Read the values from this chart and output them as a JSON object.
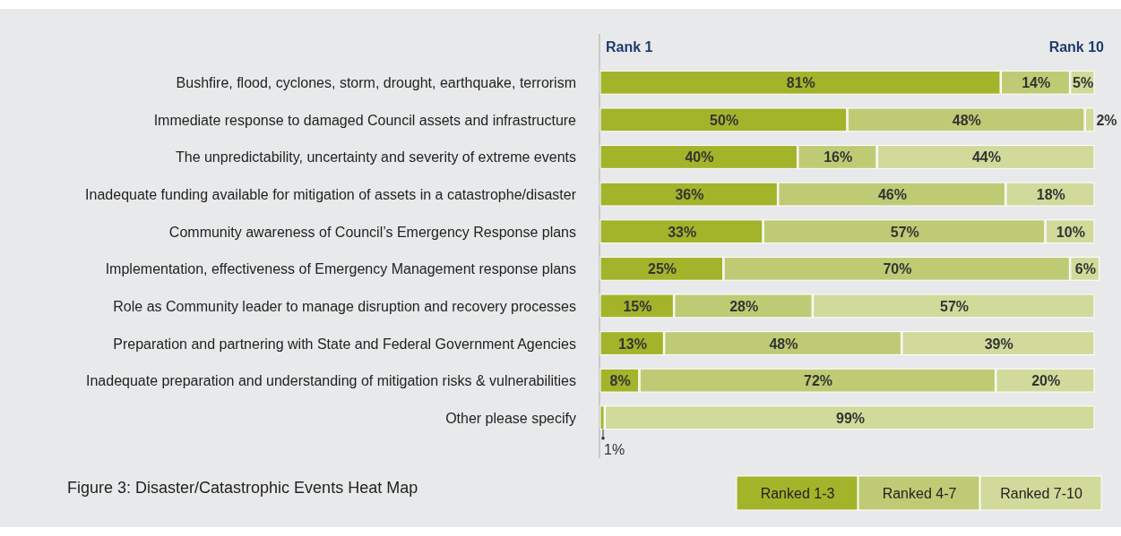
{
  "chart_data": {
    "type": "bar",
    "orientation": "horizontal",
    "stacked": true,
    "title": "Figure 3:  Disaster/Catastrophic Events Heat Map",
    "categories": [
      "Bushfire, flood, cyclones, storm, drought, earthquake, terrorism",
      "Immediate response to damaged Council assets and infrastructure",
      "The unpredictability, uncertainty and severity of extreme events",
      "Inadequate funding available for mitigation of assets in a catastrophe/disaster",
      "Community awareness of Council’s Emergency Response plans",
      "Implementation, effectiveness of Emergency Management response plans",
      "Role as Community leader to manage disruption and recovery processes",
      "Preparation and partnering with State and Federal Government Agencies",
      "Inadequate preparation and understanding of mitigation risks & vulnerabilities",
      "Other please specify"
    ],
    "series": [
      {
        "name": "Ranked 1-3",
        "color": "#a3b42a",
        "values": [
          81,
          50,
          40,
          36,
          33,
          25,
          15,
          13,
          8,
          1
        ],
        "value_labels": [
          "81%",
          "50%",
          "40%",
          "36%",
          "33%",
          "25%",
          "15%",
          "13%",
          "8%",
          "1%"
        ]
      },
      {
        "name": "Ranked 4-7",
        "color": "#bfcb74",
        "values": [
          14,
          48,
          16,
          46,
          57,
          70,
          28,
          48,
          72,
          null
        ],
        "value_labels": [
          "14%",
          "48%",
          "16%",
          "46%",
          "57%",
          "70%",
          "28%",
          "48%",
          "72%",
          null
        ]
      },
      {
        "name": "Ranked 7-10",
        "color": "#d1da9a",
        "values": [
          5,
          2,
          44,
          18,
          10,
          6,
          57,
          39,
          20,
          99
        ],
        "value_labels": [
          "5%",
          "2%",
          "44%",
          "18%",
          "10%",
          "6%",
          "57%",
          "39%",
          "20%",
          "99%"
        ]
      }
    ],
    "legend": "bottom right",
    "annotations": [
      "Rank 1",
      "Rank 10"
    ]
  }
}
